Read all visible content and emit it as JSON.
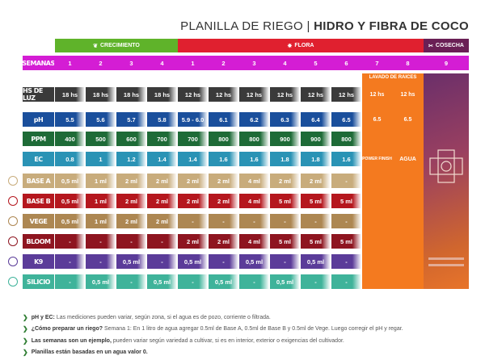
{
  "title": {
    "light": "PLANILLA DE RIEGO |",
    "bold": "HIDRO Y  FIBRA DE COCO"
  },
  "phases": [
    {
      "label": "CRECIMIENTO",
      "icon": "seedling-icon",
      "color": "#5fb32a"
    },
    {
      "label": "FLORA",
      "icon": "flower-icon",
      "color": "#e0202f"
    },
    {
      "label": "COSECHA",
      "icon": "harvest-icon",
      "color": "#6a1f55"
    }
  ],
  "lavado_label": "LAVADO DE RAICES",
  "rows": [
    {
      "label": "SEMANAS",
      "color": "#d41dd4",
      "values": [
        "1",
        "2",
        "3",
        "4",
        "1",
        "2",
        "3",
        "4",
        "5",
        "6",
        "7",
        "8",
        "9"
      ]
    },
    {
      "label": "HS DE LUZ",
      "color": "#3a3a3a",
      "values": [
        "18 hs",
        "18 hs",
        "18 hs",
        "18 hs",
        "12 hs",
        "12 hs",
        "12 hs",
        "12 hs",
        "12 hs",
        "12 hs",
        "12 hs",
        "12 hs"
      ]
    },
    {
      "label": "pH",
      "color": "#1a4f9c",
      "values": [
        "5.5",
        "5.6",
        "5.7",
        "5.8",
        "5.9 - 6.0",
        "6.1",
        "6.2",
        "6.3",
        "6.4",
        "6.5",
        "6.5",
        "6.5"
      ]
    },
    {
      "label": "PPM",
      "color": "#1e6b37",
      "values": [
        "400",
        "500",
        "600",
        "700",
        "700",
        "800",
        "800",
        "900",
        "900",
        "800",
        "",
        ""
      ]
    },
    {
      "label": "EC",
      "color": "#2a93b5",
      "values": [
        "0.8",
        "1",
        "1.2",
        "1.4",
        "1.4",
        "1.6",
        "1.6",
        "1.8",
        "1.8",
        "1.6",
        "POWER FINISH",
        "AGUA"
      ]
    },
    {
      "label": "BASE A",
      "color": "#c8ac7c",
      "icon": "base-a-icon",
      "values": [
        "0,5 ml",
        "1 ml",
        "2 ml",
        "2 ml",
        "2 ml",
        "2 ml",
        "4 ml",
        "2 ml",
        "2 ml",
        "-",
        "",
        ""
      ]
    },
    {
      "label": "BASE B",
      "color": "#b5171e",
      "icon": "base-b-icon",
      "values": [
        "0,5 ml",
        "1 ml",
        "2 ml",
        "2 ml",
        "2 ml",
        "2 ml",
        "4 ml",
        "5 ml",
        "5 ml",
        "5 ml",
        "",
        ""
      ]
    },
    {
      "label": "VEGE",
      "color": "#ad8752",
      "icon": "vege-icon",
      "values": [
        "0,5 ml",
        "1 ml",
        "2 ml",
        "2 ml",
        "-",
        "-",
        "-",
        "-",
        "-",
        "-",
        "",
        ""
      ]
    },
    {
      "label": "BLOOM",
      "color": "#8e1520",
      "icon": "bloom-icon",
      "values": [
        "-",
        "-",
        "-",
        "-",
        "2 ml",
        "2 ml",
        "4 ml",
        "5 ml",
        "5 ml",
        "5 ml",
        "",
        ""
      ]
    },
    {
      "label": "K9",
      "color": "#5b3c99",
      "icon": "k9-icon",
      "values": [
        "-",
        "-",
        "0,5 ml",
        "-",
        "0,5 ml",
        "-",
        "0,5 ml",
        "-",
        "0,5 ml",
        "-",
        "",
        ""
      ]
    },
    {
      "label": "SILICIO",
      "color": "#3fb39a",
      "icon": "silicio-icon",
      "values": [
        "-",
        "0,5 ml",
        "-",
        "0,5 ml",
        "-",
        "0,5 ml",
        "-",
        "0,5 ml",
        "-",
        "-",
        "",
        ""
      ]
    }
  ],
  "notes": [
    {
      "bold": "pH y EC:",
      "text": " Las mediciones pueden variar, según zona, si el agua es de pozo, corriente o filtrada."
    },
    {
      "bold": "¿Cómo preparar un riego?",
      "text": " Semana 1: En 1 litro de agua agregar 0.5ml de Base A, 0.5ml de Base B y 0.5ml de Vege. Luego corregir el pH y regar."
    },
    {
      "bold": "Las semanas son un ejemplo,",
      "text": " pueden variar según variedad a cultivar, si es en interior, exterior o exigencias del cultivador."
    },
    {
      "bold": "Planillas están basadas en un agua valor 0.",
      "text": ""
    }
  ],
  "colors": {
    "orange": "#f47a1f",
    "arrow": "#2e7d32"
  }
}
